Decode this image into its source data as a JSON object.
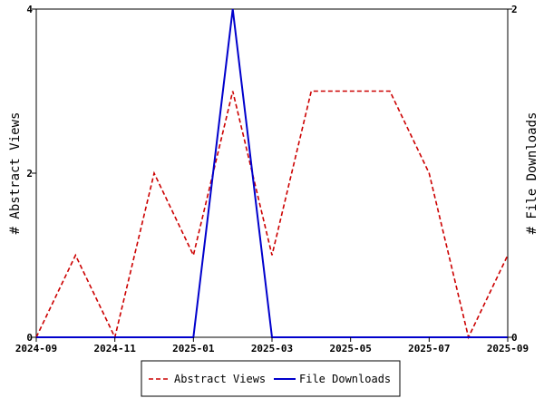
{
  "chart_data": {
    "type": "line",
    "title": "",
    "xlabel": "",
    "x": [
      "2024-09",
      "2024-10",
      "2024-11",
      "2024-12",
      "2025-01",
      "2025-02",
      "2025-03",
      "2025-04",
      "2025-05",
      "2025-06",
      "2025-07",
      "2025-08",
      "2025-09"
    ],
    "x_ticks": [
      "2024-09",
      "2024-11",
      "2025-01",
      "2025-03",
      "2025-05",
      "2025-07",
      "2025-09"
    ],
    "y_left": {
      "label": "# Abstract Views",
      "ylim": [
        0,
        4
      ],
      "ticks": [
        "0",
        "2",
        "4"
      ]
    },
    "y_right": {
      "label": "# File Downloads",
      "ylim": [
        0,
        2
      ],
      "ticks": [
        "0",
        "2"
      ]
    },
    "series": [
      {
        "name": "Abstract Views",
        "axis": "left",
        "style": "dashed",
        "color": "#cc0000",
        "values": [
          0,
          1,
          0,
          2,
          1,
          3,
          1,
          3,
          3,
          3,
          2,
          0,
          1
        ]
      },
      {
        "name": "File Downloads",
        "axis": "right",
        "style": "solid",
        "color": "#0000cc",
        "values": [
          0,
          0,
          0,
          0,
          0,
          2,
          0,
          0,
          0,
          0,
          0,
          0,
          0
        ]
      }
    ],
    "grid": false,
    "legend_position": "bottom"
  }
}
